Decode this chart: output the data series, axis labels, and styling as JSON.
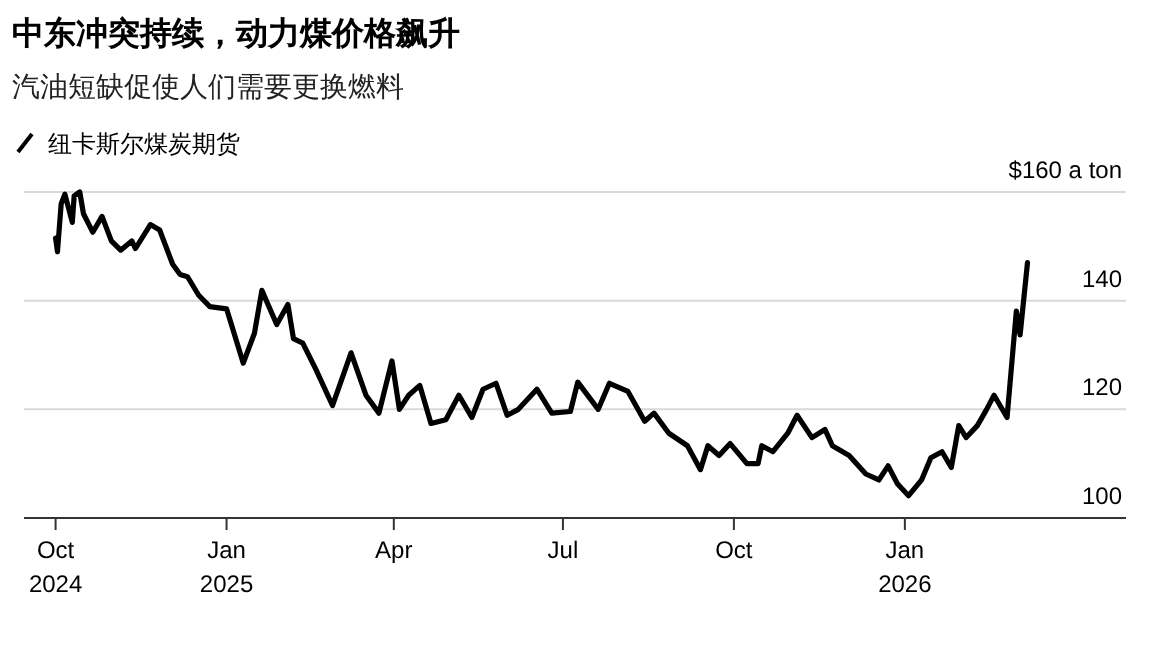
{
  "chart_data": {
    "type": "line",
    "title": "中东冲突持续，动力煤价格飙升",
    "subtitle": "汽油短缺促使人们需要更换燃料",
    "legend": "top left",
    "grid": "y",
    "line_style": "solid",
    "marker": "none",
    "xlim": [
      "2024-09-14",
      "2026-04-30"
    ],
    "ylim": [
      100,
      160
    ],
    "xticks": [
      {
        "value": "2024-10-01",
        "label": "Oct 2024"
      },
      {
        "value": "2025-01-01",
        "label": "Jan 2025"
      },
      {
        "value": "2025-04-01",
        "label": "Apr"
      },
      {
        "value": "2025-07-01",
        "label": "Jul"
      },
      {
        "value": "2025-10-01",
        "label": "Oct"
      },
      {
        "value": "2026-01-01",
        "label": "Jan 2026"
      }
    ],
    "yticks": [
      100,
      120,
      140,
      {
        "value": 160,
        "label": "$160 a ton"
      }
    ],
    "series": [
      {
        "name": "纽卡斯尔煤炭期货",
        "color": "#000000",
        "x": [
          "2024-10-01",
          "2024-10-02",
          "2024-10-04",
          "2024-10-06",
          "2024-10-10",
          "2024-10-11",
          "2024-10-14",
          "2024-10-16",
          "2024-10-21",
          "2024-10-26",
          "2024-10-31",
          "2024-11-05",
          "2024-11-11",
          "2024-11-13",
          "2024-11-21",
          "2024-11-26",
          "2024-12-03",
          "2024-12-07",
          "2024-12-11",
          "2024-12-17",
          "2024-12-23",
          "2025-01-01",
          "2025-01-10",
          "2025-01-16",
          "2025-01-20",
          "2025-01-28",
          "2025-02-03",
          "2025-02-06",
          "2025-02-11",
          "2025-02-18",
          "2025-02-27",
          "2025-03-09",
          "2025-03-17",
          "2025-03-24",
          "2025-03-31",
          "2025-04-04",
          "2025-04-09",
          "2025-04-15",
          "2025-04-21",
          "2025-04-29",
          "2025-05-06",
          "2025-05-13",
          "2025-05-19",
          "2025-05-26",
          "2025-06-01",
          "2025-06-07",
          "2025-06-17",
          "2025-06-25",
          "2025-07-05",
          "2025-07-09",
          "2025-07-20",
          "2025-07-26",
          "2025-08-05",
          "2025-08-14",
          "2025-08-19",
          "2025-08-27",
          "2025-09-06",
          "2025-09-13",
          "2025-09-17",
          "2025-09-23",
          "2025-09-29",
          "2025-10-08",
          "2025-10-14",
          "2025-10-16",
          "2025-10-22",
          "2025-10-30",
          "2025-11-04",
          "2025-11-12",
          "2025-11-19",
          "2025-11-23",
          "2025-12-02",
          "2025-12-11",
          "2025-12-18",
          "2025-12-23",
          "2025-12-28",
          "2026-01-03",
          "2026-01-10",
          "2026-01-15",
          "2026-01-21",
          "2026-01-26",
          "2026-01-30",
          "2026-02-03",
          "2026-02-09",
          "2026-02-14",
          "2026-02-18",
          "2026-02-25",
          "2026-03-02",
          "2026-03-04",
          "2026-03-08"
        ],
        "values": [
          151.5,
          149,
          157.8,
          159.6,
          154.4,
          159.3,
          160,
          156,
          152.6,
          155.5,
          151,
          149.3,
          151,
          149.6,
          154,
          153,
          146.7,
          144.8,
          144.4,
          141,
          138.9,
          138.5,
          128.5,
          134,
          141.9,
          135.6,
          139.3,
          133,
          132.2,
          127.4,
          120.7,
          130.4,
          122.6,
          119.3,
          128.9,
          120,
          122.6,
          124.4,
          117.4,
          118.1,
          122.6,
          118.5,
          123.7,
          124.8,
          118.9,
          120,
          123.7,
          119.3,
          119.6,
          125,
          120,
          124.8,
          123.3,
          117.8,
          119.3,
          115.6,
          113.3,
          108.9,
          113.3,
          111.5,
          113.7,
          110,
          110,
          113.3,
          112.2,
          115.6,
          118.9,
          114.8,
          116.3,
          113.3,
          111.5,
          108.1,
          107,
          109.6,
          106.3,
          104.1,
          107,
          111.1,
          112.2,
          109.3,
          117,
          114.8,
          117,
          120,
          122.6,
          118.5,
          138.1,
          133.7,
          147
        ]
      }
    ]
  }
}
